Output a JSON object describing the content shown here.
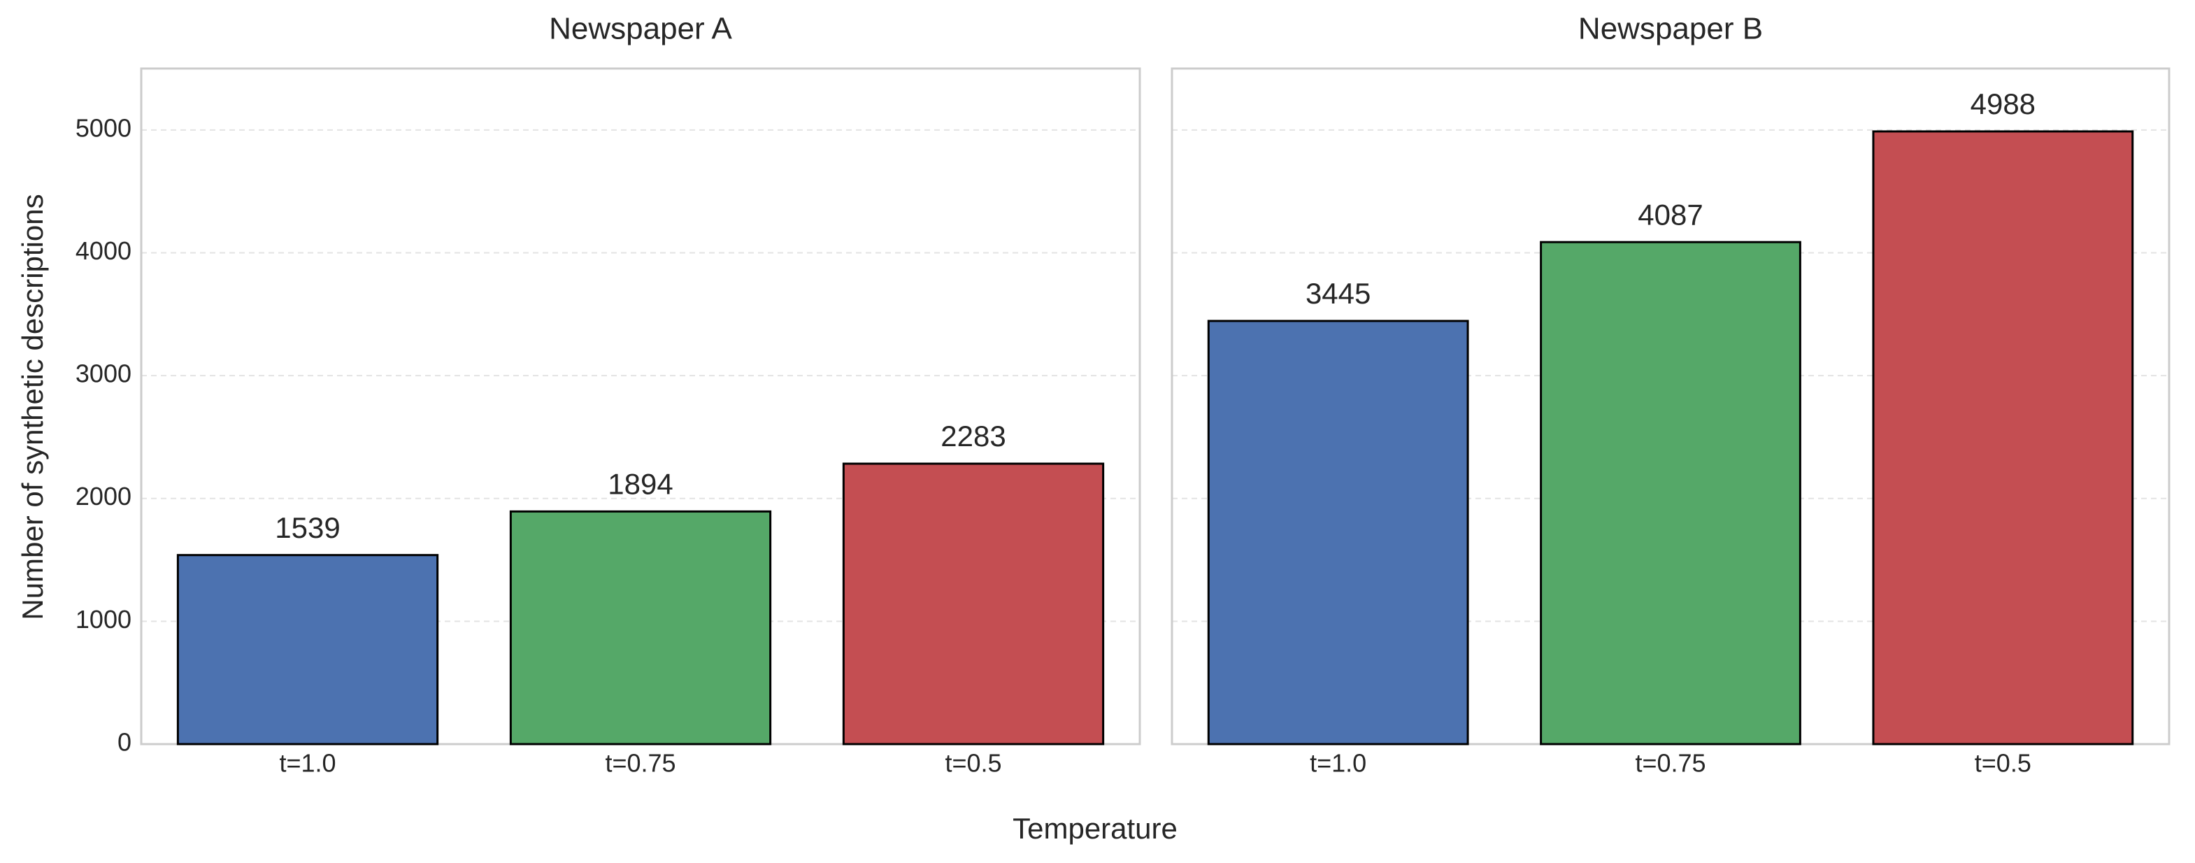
{
  "ylabel": "Number of synthetic descriptions",
  "xlabel": "Temperature",
  "chart_data": [
    {
      "type": "bar",
      "title": "Newspaper A",
      "categories": [
        "t=1.0",
        "t=0.75",
        "t=0.5"
      ],
      "values": [
        1539,
        1894,
        2283
      ],
      "colors": [
        "#4c72b0",
        "#55a868",
        "#c44e52"
      ],
      "ylim": [
        0,
        5500
      ],
      "yticks": [
        0,
        1000,
        2000,
        3000,
        4000,
        5000
      ],
      "grid": true
    },
    {
      "type": "bar",
      "title": "Newspaper B",
      "categories": [
        "t=1.0",
        "t=0.75",
        "t=0.5"
      ],
      "values": [
        3445,
        4087,
        4988
      ],
      "colors": [
        "#4c72b0",
        "#55a868",
        "#c44e52"
      ],
      "ylim": [
        0,
        5500
      ],
      "yticks": [
        0,
        1000,
        2000,
        3000,
        4000,
        5000
      ],
      "grid": true
    }
  ]
}
